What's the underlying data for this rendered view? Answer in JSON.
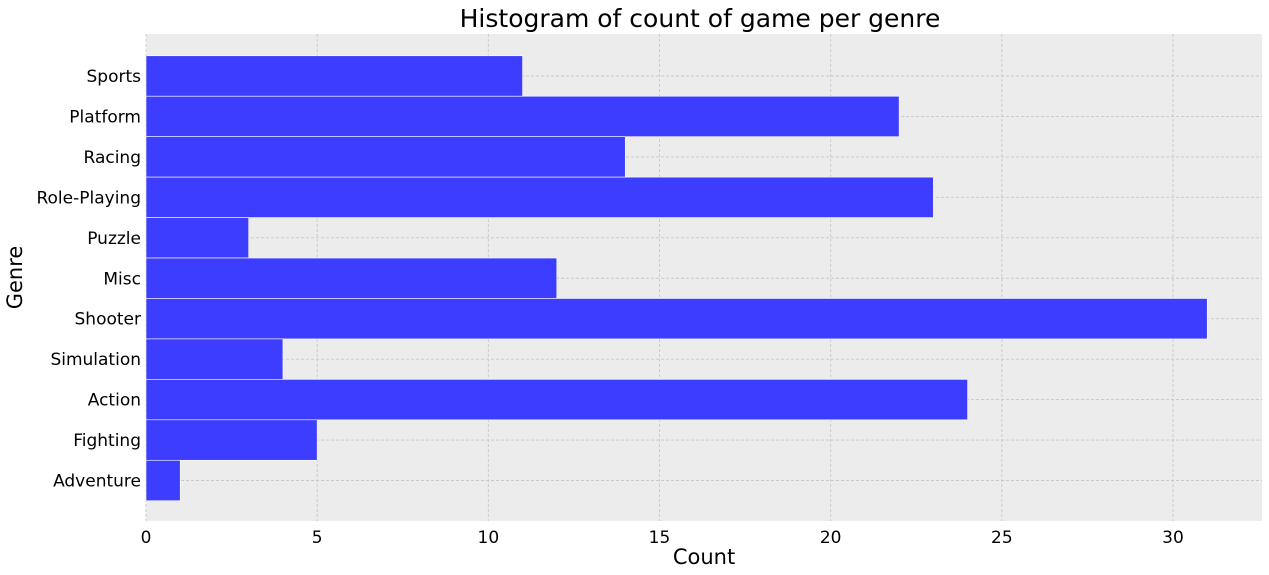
{
  "chart_data": {
    "type": "bar",
    "orientation": "horizontal",
    "title": "Histogram of count of game per genre",
    "xlabel": "Count",
    "ylabel": "Genre",
    "categories": [
      "Sports",
      "Platform",
      "Racing",
      "Role-Playing",
      "Puzzle",
      "Misc",
      "Shooter",
      "Simulation",
      "Action",
      "Fighting",
      "Adventure"
    ],
    "values": [
      11,
      22,
      14,
      23,
      3,
      12,
      31,
      4,
      24,
      5,
      1
    ],
    "xticks": [
      "0",
      "5",
      "10",
      "15",
      "20",
      "25",
      "30"
    ],
    "xlim": [
      0,
      32.6
    ],
    "grid": true,
    "colors": {
      "bar": "#3d3dff",
      "background": "#ececec",
      "grid": "#c8c8c8"
    }
  }
}
